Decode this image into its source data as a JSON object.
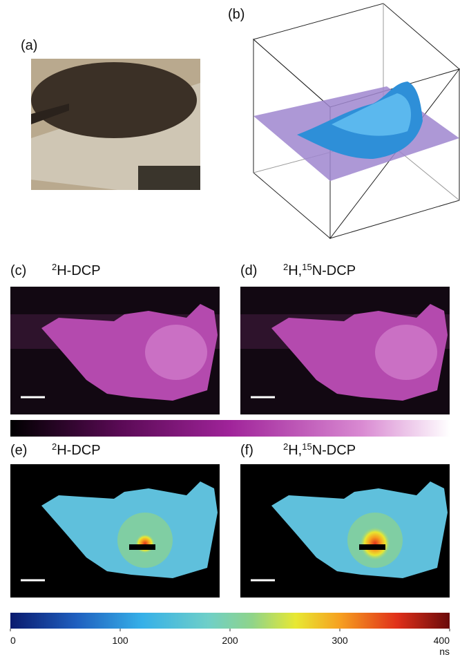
{
  "panels": [
    {
      "label": "(a)"
    },
    {
      "label": "(b)"
    },
    {
      "label": "(c)",
      "title": [
        {
          "text": "2",
          "sup": true
        },
        {
          "text": "H-DCP",
          "sup": false
        }
      ]
    },
    {
      "label": "(d)",
      "title": [
        {
          "text": "2",
          "sup": true
        },
        {
          "text": "H,",
          "sup": false
        },
        {
          "text": "15",
          "sup": true
        },
        {
          "text": "N-DCP",
          "sup": false
        }
      ]
    },
    {
      "label": "(e)",
      "title": [
        {
          "text": "2",
          "sup": true
        },
        {
          "text": "H-DCP",
          "sup": false
        }
      ]
    },
    {
      "label": "(f)",
      "title": [
        {
          "text": "2",
          "sup": true
        },
        {
          "text": "H,",
          "sup": false
        },
        {
          "text": "15",
          "sup": true
        },
        {
          "text": "N-DCP",
          "sup": false
        }
      ]
    }
  ],
  "colorbar": {
    "lim": [
      0,
      400
    ],
    "ticks": [
      0,
      100,
      200,
      300,
      400
    ],
    "unit": "ns"
  }
}
